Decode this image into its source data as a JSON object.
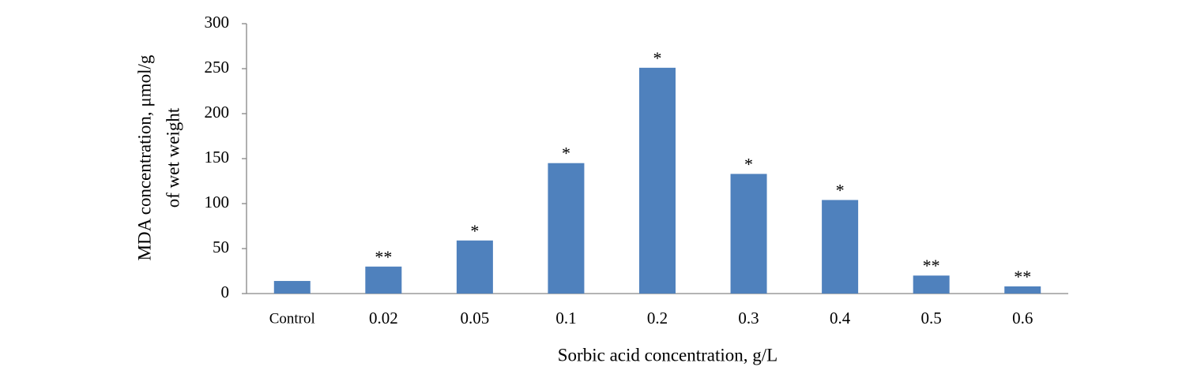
{
  "chart_data": {
    "type": "bar",
    "xlabel": "Sorbic acid concentration, g/L",
    "ylabel": [
      "MDA concentration, μmol/g",
      "of wet weight"
    ],
    "categories": [
      "Control",
      "0.02",
      "0.05",
      "0.1",
      "0.2",
      "0.3",
      "0.4",
      "0.5",
      "0.6"
    ],
    "values": [
      14,
      30,
      59,
      145,
      251,
      133,
      104,
      20,
      8
    ],
    "annotations": [
      null,
      "**",
      "*",
      "*",
      "*",
      "*",
      "*",
      "**",
      "**"
    ],
    "color": "#4f81bd",
    "ylim": [
      0,
      300
    ],
    "yticks": [
      0,
      50,
      100,
      150,
      200,
      250,
      300
    ],
    "grid": false
  }
}
